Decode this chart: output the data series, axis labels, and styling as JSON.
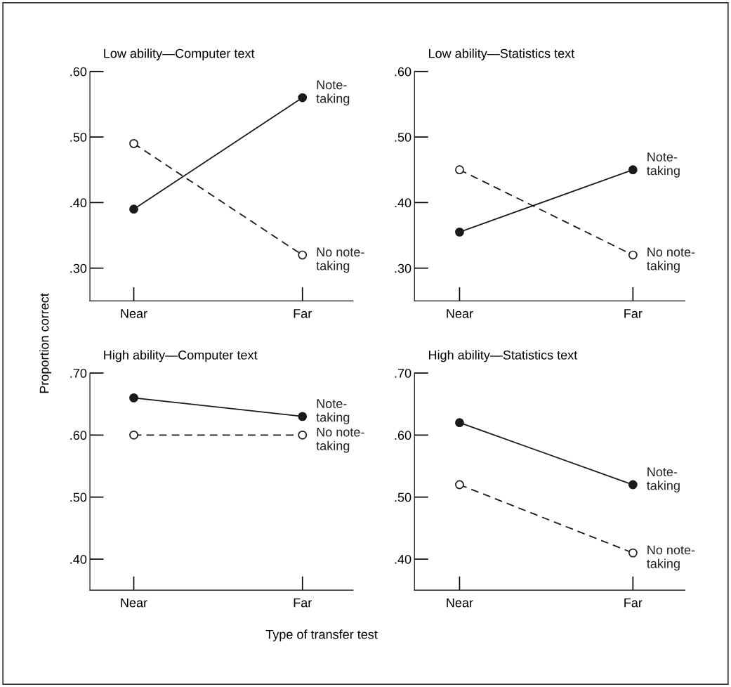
{
  "chart_data": [
    {
      "type": "line",
      "title": "Low ability—Computer text",
      "ylabel": "Proportion correct",
      "categories": [
        "Near",
        "Far"
      ],
      "ylim": [
        0.25,
        0.6
      ],
      "yticks": [
        {
          "value": 0.3,
          "label": ".30"
        },
        {
          "value": 0.4,
          "label": ".40"
        },
        {
          "value": 0.5,
          "label": ".50"
        },
        {
          "value": 0.6,
          "label": ".60"
        }
      ],
      "grid": false,
      "legend": false,
      "marker": "circle",
      "series": [
        {
          "name": "Note-\ntaking",
          "color": "#1a1a1a",
          "line_style": "solid",
          "values": [
            0.39,
            0.56
          ]
        },
        {
          "name": "No note-\ntaking",
          "color": "#1a1a1a",
          "line_style": "dashed",
          "values": [
            0.49,
            0.32
          ]
        }
      ]
    },
    {
      "type": "line",
      "title": "Low ability—Statistics text",
      "categories": [
        "Near",
        "Far"
      ],
      "ylim": [
        0.25,
        0.6
      ],
      "yticks": [
        {
          "value": 0.3,
          "label": ".30"
        },
        {
          "value": 0.4,
          "label": ".40"
        },
        {
          "value": 0.5,
          "label": ".50"
        },
        {
          "value": 0.6,
          "label": ".60"
        }
      ],
      "grid": false,
      "legend": false,
      "marker": "circle",
      "series": [
        {
          "name": "Note-\ntaking",
          "color": "#1a1a1a",
          "line_style": "solid",
          "values": [
            0.355,
            0.45
          ]
        },
        {
          "name": "No note-\ntaking",
          "color": "#1a1a1a",
          "line_style": "dashed",
          "values": [
            0.45,
            0.32
          ]
        }
      ]
    },
    {
      "type": "line",
      "title": "High ability—Computer text",
      "categories": [
        "Near",
        "Far"
      ],
      "ylim": [
        0.35,
        0.7
      ],
      "yticks": [
        {
          "value": 0.4,
          "label": ".40"
        },
        {
          "value": 0.5,
          "label": ".50"
        },
        {
          "value": 0.6,
          "label": ".60"
        },
        {
          "value": 0.7,
          "label": ".70"
        }
      ],
      "grid": false,
      "legend": false,
      "marker": "circle",
      "series": [
        {
          "name": "Note-\ntaking",
          "color": "#1a1a1a",
          "line_style": "solid",
          "values": [
            0.66,
            0.63
          ]
        },
        {
          "name": "No note-\ntaking",
          "color": "#1a1a1a",
          "line_style": "dashed",
          "values": [
            0.6,
            0.6
          ]
        }
      ]
    },
    {
      "type": "line",
      "title": "High ability—Statistics text",
      "xlabel": "Type of transfer test",
      "categories": [
        "Near",
        "Far"
      ],
      "ylim": [
        0.35,
        0.7
      ],
      "yticks": [
        {
          "value": 0.4,
          "label": ".40"
        },
        {
          "value": 0.5,
          "label": ".50"
        },
        {
          "value": 0.6,
          "label": ".60"
        },
        {
          "value": 0.7,
          "label": ".70"
        }
      ],
      "grid": false,
      "legend": false,
      "marker": "circle",
      "series": [
        {
          "name": "Note-\ntaking",
          "color": "#1a1a1a",
          "line_style": "solid",
          "values": [
            0.62,
            0.52
          ]
        },
        {
          "name": "No note-\ntaking",
          "color": "#1a1a1a",
          "line_style": "dashed",
          "values": [
            0.52,
            0.41
          ]
        }
      ]
    }
  ]
}
